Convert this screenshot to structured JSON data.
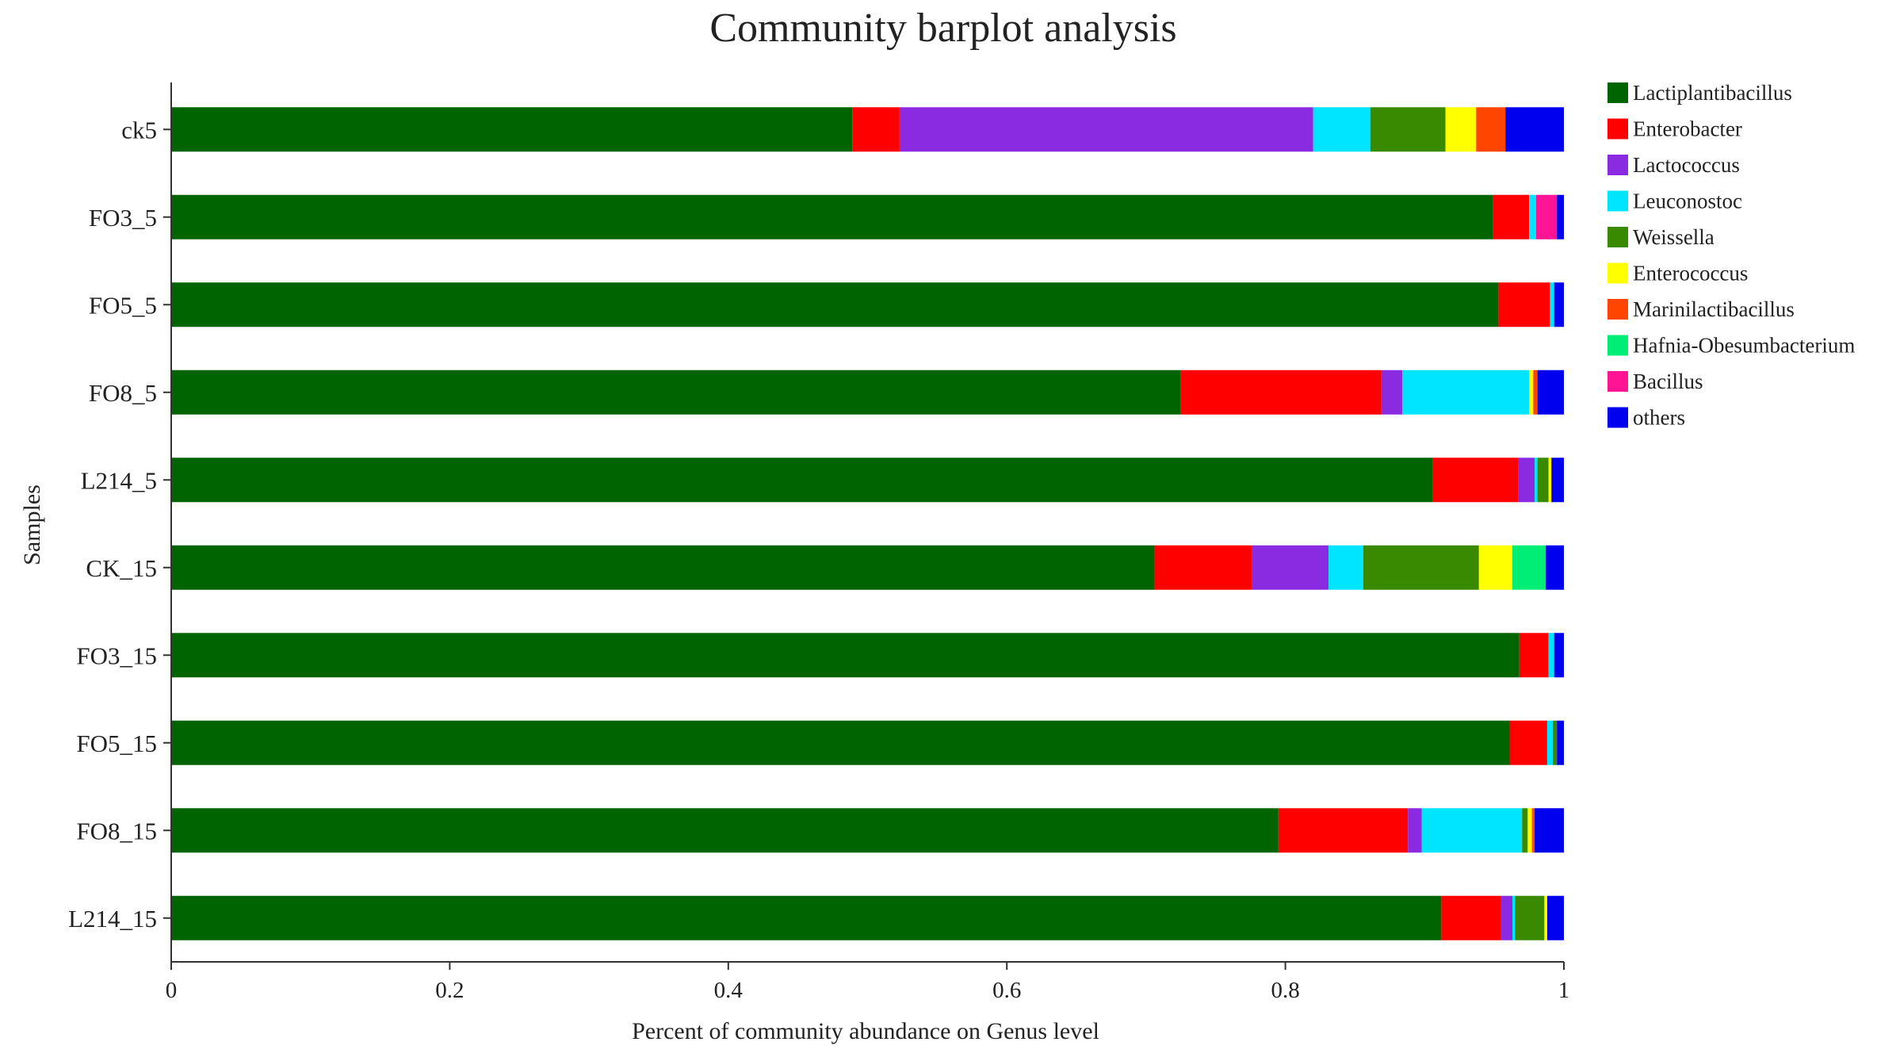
{
  "chart_data": {
    "type": "bar",
    "orientation": "horizontal",
    "stacked": true,
    "title": "Community barplot analysis",
    "xlabel": "Percent of community abundance on Genus level",
    "ylabel": "Samples",
    "xlim": [
      0,
      1
    ],
    "xticks": [
      "0",
      "0.2",
      "0.4",
      "0.6",
      "0.8",
      "1"
    ],
    "xtick_values": [
      0,
      0.2,
      0.4,
      0.6,
      0.8,
      1.0
    ],
    "grid": false,
    "legend_position": "right",
    "categories": [
      "ck5",
      "FO3_5",
      "FO5_5",
      "FO8_5",
      "L214_5",
      "CK_15",
      "FO3_15",
      "FO5_15",
      "FO8_15",
      "L214_15"
    ],
    "series": [
      {
        "name": "Lactiplantibacillus",
        "color": "#006400",
        "values": [
          0.489,
          0.949,
          0.953,
          0.725,
          0.906,
          0.706,
          0.968,
          0.961,
          0.795,
          0.912
        ]
      },
      {
        "name": "Enterobacter",
        "color": "#ff0000",
        "values": [
          0.034,
          0.026,
          0.037,
          0.144,
          0.061,
          0.07,
          0.021,
          0.027,
          0.093,
          0.043
        ]
      },
      {
        "name": "Lactococcus",
        "color": "#8a2be2",
        "values": [
          0.297,
          0.0,
          0.0,
          0.015,
          0.012,
          0.055,
          0.0,
          0.0,
          0.01,
          0.008
        ]
      },
      {
        "name": "Leuconostoc",
        "color": "#00e5ff",
        "values": [
          0.041,
          0.005,
          0.003,
          0.091,
          0.002,
          0.025,
          0.004,
          0.004,
          0.072,
          0.002
        ]
      },
      {
        "name": "Weissella",
        "color": "#3a8a00",
        "values": [
          0.054,
          0.0,
          0.0,
          0.0,
          0.008,
          0.083,
          0.0,
          0.003,
          0.004,
          0.021
        ]
      },
      {
        "name": "Enterococcus",
        "color": "#ffff00",
        "values": [
          0.022,
          0.0,
          0.0,
          0.003,
          0.002,
          0.024,
          0.0,
          0.0,
          0.003,
          0.002
        ]
      },
      {
        "name": "Marinilactibacillus",
        "color": "#ff4500",
        "values": [
          0.021,
          0.0,
          0.0,
          0.003,
          0.0,
          0.0,
          0.0,
          0.0,
          0.002,
          0.0
        ]
      },
      {
        "name": "Hafnia-Obesumbacterium",
        "color": "#00ee76",
        "values": [
          0.0,
          0.0,
          0.0,
          0.0,
          0.0,
          0.024,
          0.0,
          0.0,
          0.0,
          0.0
        ]
      },
      {
        "name": "Bacillus",
        "color": "#ff1493",
        "values": [
          0.0,
          0.015,
          0.0,
          0.0,
          0.0,
          0.0,
          0.0,
          0.0,
          0.0,
          0.0
        ]
      },
      {
        "name": "others",
        "color": "#0000ee",
        "values": [
          0.042,
          0.005,
          0.007,
          0.019,
          0.009,
          0.013,
          0.007,
          0.005,
          0.021,
          0.012
        ]
      }
    ]
  }
}
